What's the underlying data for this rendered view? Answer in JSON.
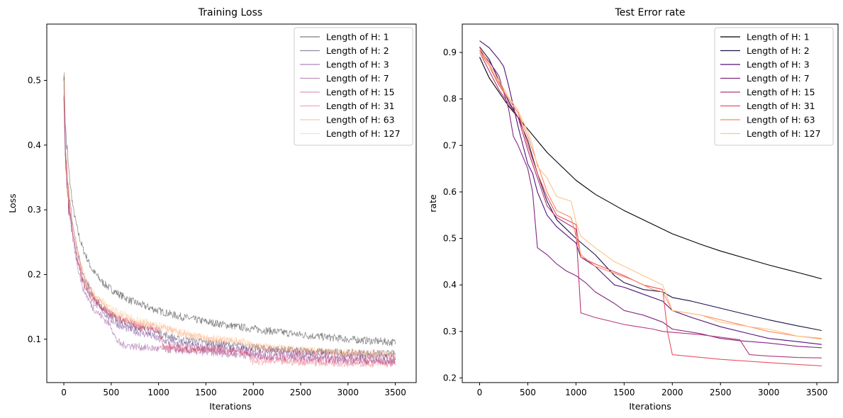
{
  "chart_data": [
    {
      "type": "line",
      "title": "Training Loss",
      "xlabel": "Iterations",
      "ylabel": "Loss",
      "xlim": [
        -180,
        3720
      ],
      "ylim": [
        0.033,
        0.587
      ],
      "xticks": [
        0,
        500,
        1000,
        1500,
        2000,
        2500,
        3000,
        3500
      ],
      "yticks": [
        0.1,
        0.2,
        0.3,
        0.4,
        0.5
      ],
      "grid": false,
      "legend": "top-right",
      "noisy": true,
      "line_opacity": 0.5,
      "series": [
        {
          "name": "Length of H: 1",
          "color": "#000004",
          "x": [
            0,
            20,
            50,
            100,
            150,
            200,
            300,
            400,
            500,
            600,
            700,
            800,
            1000,
            1200,
            1500,
            1800,
            2000,
            2500,
            3000,
            3500
          ],
          "values": [
            0.52,
            0.42,
            0.36,
            0.3,
            0.265,
            0.24,
            0.207,
            0.189,
            0.177,
            0.168,
            0.16,
            0.154,
            0.144,
            0.136,
            0.127,
            0.12,
            0.116,
            0.107,
            0.1,
            0.095
          ]
        },
        {
          "name": "Length of H: 2",
          "color": "#1d1147",
          "x": [
            0,
            20,
            50,
            100,
            150,
            200,
            300,
            400,
            500,
            600,
            700,
            800,
            1000,
            1200,
            1500,
            2000,
            2500,
            3000,
            3500
          ],
          "values": [
            0.5,
            0.4,
            0.33,
            0.27,
            0.23,
            0.2,
            0.17,
            0.15,
            0.137,
            0.128,
            0.122,
            0.117,
            0.11,
            0.1,
            0.095,
            0.087,
            0.082,
            0.079,
            0.077
          ]
        },
        {
          "name": "Length of H: 3",
          "color": "#51127c",
          "x": [
            0,
            20,
            50,
            100,
            150,
            200,
            300,
            400,
            500,
            600,
            700,
            800,
            900,
            1000,
            1200,
            1500,
            2000,
            2500,
            3000,
            3500
          ],
          "values": [
            0.48,
            0.38,
            0.31,
            0.26,
            0.22,
            0.19,
            0.16,
            0.145,
            0.13,
            0.12,
            0.115,
            0.11,
            0.107,
            0.1,
            0.092,
            0.088,
            0.082,
            0.078,
            0.075,
            0.072
          ]
        },
        {
          "name": "Length of H: 7",
          "color": "#832681",
          "x": [
            0,
            20,
            50,
            100,
            150,
            200,
            300,
            400,
            500,
            550,
            600,
            700,
            800,
            1000,
            1500,
            2000,
            2500,
            3000,
            3500
          ],
          "values": [
            0.47,
            0.37,
            0.3,
            0.25,
            0.21,
            0.18,
            0.15,
            0.135,
            0.12,
            0.1,
            0.092,
            0.09,
            0.088,
            0.085,
            0.08,
            0.075,
            0.07,
            0.067,
            0.065
          ]
        },
        {
          "name": "Length of H: 15",
          "color": "#b73779",
          "x": [
            0,
            20,
            50,
            100,
            150,
            200,
            300,
            400,
            500,
            600,
            700,
            800,
            1000,
            1050,
            1200,
            1500,
            1900,
            2000,
            2500,
            2800,
            3000,
            3500
          ],
          "values": [
            0.49,
            0.38,
            0.31,
            0.26,
            0.22,
            0.19,
            0.165,
            0.15,
            0.138,
            0.13,
            0.125,
            0.12,
            0.115,
            0.088,
            0.085,
            0.083,
            0.08,
            0.075,
            0.072,
            0.07,
            0.068,
            0.066
          ]
        },
        {
          "name": "Length of H: 31",
          "color": "#e75263",
          "x": [
            0,
            20,
            50,
            100,
            150,
            200,
            300,
            400,
            500,
            600,
            700,
            800,
            1000,
            1050,
            1500,
            1900,
            2000,
            2500,
            3000,
            3500
          ],
          "values": [
            0.49,
            0.38,
            0.31,
            0.26,
            0.22,
            0.19,
            0.165,
            0.15,
            0.138,
            0.13,
            0.125,
            0.12,
            0.114,
            0.088,
            0.085,
            0.082,
            0.066,
            0.065,
            0.063,
            0.062
          ]
        },
        {
          "name": "Length of H: 63",
          "color": "#fc8961",
          "x": [
            0,
            20,
            50,
            100,
            150,
            200,
            300,
            400,
            500,
            600,
            700,
            800,
            1000,
            1200,
            1500,
            1900,
            2000,
            2500,
            3000,
            3500
          ],
          "values": [
            0.5,
            0.39,
            0.32,
            0.27,
            0.23,
            0.2,
            0.17,
            0.155,
            0.143,
            0.135,
            0.13,
            0.125,
            0.12,
            0.11,
            0.1,
            0.095,
            0.088,
            0.082,
            0.078,
            0.075
          ]
        },
        {
          "name": "Length of H: 127",
          "color": "#fec488",
          "x": [
            0,
            20,
            50,
            100,
            150,
            200,
            300,
            400,
            500,
            600,
            700,
            800,
            1000,
            1200,
            1500,
            1900,
            2000,
            2500,
            3000,
            3500
          ],
          "values": [
            0.52,
            0.4,
            0.33,
            0.275,
            0.235,
            0.205,
            0.175,
            0.16,
            0.148,
            0.14,
            0.134,
            0.128,
            0.122,
            0.112,
            0.102,
            0.096,
            0.09,
            0.084,
            0.08,
            0.077
          ]
        }
      ]
    },
    {
      "type": "line",
      "title": "Test Error rate",
      "xlabel": "Iterations",
      "ylabel": "rate",
      "xlim": [
        -180,
        3720
      ],
      "ylim": [
        0.19,
        0.961
      ],
      "xticks": [
        0,
        500,
        1000,
        1500,
        2000,
        2500,
        3000,
        3500
      ],
      "yticks": [
        0.2,
        0.3,
        0.4,
        0.5,
        0.6,
        0.7,
        0.8,
        0.9
      ],
      "grid": false,
      "legend": "top-right",
      "noisy": false,
      "line_opacity": 1,
      "series": [
        {
          "name": "Length of H: 1",
          "color": "#000004",
          "x": [
            0,
            100,
            200,
            300,
            400,
            500,
            700,
            1000,
            1200,
            1500,
            1800,
            2000,
            2300,
            2500,
            2800,
            3000,
            3300,
            3550
          ],
          "values": [
            0.89,
            0.845,
            0.815,
            0.785,
            0.76,
            0.735,
            0.685,
            0.625,
            0.595,
            0.56,
            0.53,
            0.51,
            0.487,
            0.473,
            0.455,
            0.443,
            0.427,
            0.413
          ]
        },
        {
          "name": "Length of H: 2",
          "color": "#1d1147",
          "x": [
            0,
            100,
            200,
            300,
            400,
            500,
            600,
            700,
            800,
            1000,
            1200,
            1400,
            1500,
            1700,
            1900,
            2000,
            2200,
            2500,
            2700,
            3000,
            3300,
            3550
          ],
          "values": [
            0.912,
            0.885,
            0.84,
            0.795,
            0.76,
            0.71,
            0.64,
            0.58,
            0.54,
            0.5,
            0.465,
            0.42,
            0.405,
            0.39,
            0.385,
            0.373,
            0.365,
            0.35,
            0.34,
            0.325,
            0.312,
            0.302
          ]
        },
        {
          "name": "Length of H: 3",
          "color": "#51127c",
          "x": [
            0,
            100,
            200,
            250,
            300,
            400,
            500,
            550,
            600,
            700,
            800,
            1000,
            1050,
            1200,
            1300,
            1400,
            1500,
            1700,
            1900,
            2000,
            2200,
            2500,
            2800,
            3000,
            3300,
            3550
          ],
          "values": [
            0.925,
            0.91,
            0.885,
            0.87,
            0.83,
            0.74,
            0.66,
            0.64,
            0.6,
            0.55,
            0.525,
            0.49,
            0.46,
            0.44,
            0.42,
            0.4,
            0.395,
            0.38,
            0.365,
            0.345,
            0.33,
            0.31,
            0.295,
            0.285,
            0.278,
            0.272
          ]
        },
        {
          "name": "Length of H: 7",
          "color": "#832681",
          "x": [
            0,
            100,
            200,
            300,
            350,
            400,
            500,
            550,
            600,
            700,
            800,
            900,
            1000,
            1100,
            1200,
            1400,
            1500,
            1700,
            1900,
            2000,
            2300,
            2500,
            2700,
            3000,
            3300,
            3550
          ],
          "values": [
            0.905,
            0.88,
            0.85,
            0.78,
            0.72,
            0.7,
            0.65,
            0.6,
            0.48,
            0.465,
            0.445,
            0.43,
            0.42,
            0.405,
            0.385,
            0.36,
            0.345,
            0.335,
            0.32,
            0.305,
            0.295,
            0.285,
            0.28,
            0.275,
            0.268,
            0.265
          ]
        },
        {
          "name": "Length of H: 15",
          "color": "#b73779",
          "x": [
            0,
            100,
            200,
            300,
            400,
            500,
            600,
            700,
            800,
            1000,
            1050,
            1200,
            1500,
            1800,
            1900,
            2000,
            2300,
            2600,
            2700,
            2800,
            3000,
            3300,
            3550
          ],
          "values": [
            0.9,
            0.86,
            0.82,
            0.79,
            0.76,
            0.69,
            0.63,
            0.57,
            0.545,
            0.52,
            0.34,
            0.33,
            0.315,
            0.305,
            0.3,
            0.298,
            0.293,
            0.285,
            0.282,
            0.25,
            0.247,
            0.244,
            0.243
          ]
        },
        {
          "name": "Length of H: 31",
          "color": "#e75263",
          "x": [
            0,
            100,
            200,
            300,
            400,
            500,
            600,
            700,
            800,
            1000,
            1050,
            1200,
            1500,
            1700,
            1900,
            1950,
            2000,
            2500,
            3000,
            3300,
            3550
          ],
          "values": [
            0.905,
            0.87,
            0.83,
            0.8,
            0.77,
            0.7,
            0.64,
            0.59,
            0.55,
            0.53,
            0.46,
            0.445,
            0.42,
            0.4,
            0.39,
            0.3,
            0.25,
            0.24,
            0.233,
            0.229,
            0.226
          ]
        },
        {
          "name": "Length of H: 63",
          "color": "#fc8961",
          "x": [
            0,
            100,
            200,
            300,
            400,
            500,
            600,
            700,
            800,
            950,
            1050,
            1200,
            1400,
            1600,
            1800,
            1900,
            2000,
            2300,
            2500,
            2800,
            3000,
            3300,
            3550
          ],
          "values": [
            0.91,
            0.875,
            0.835,
            0.8,
            0.77,
            0.72,
            0.66,
            0.6,
            0.56,
            0.545,
            0.465,
            0.44,
            0.425,
            0.41,
            0.39,
            0.385,
            0.345,
            0.335,
            0.325,
            0.31,
            0.3,
            0.29,
            0.285
          ]
        },
        {
          "name": "Length of H: 127",
          "color": "#fec488",
          "x": [
            0,
            100,
            200,
            300,
            400,
            500,
            550,
            600,
            700,
            800,
            950,
            1000,
            1050,
            1200,
            1400,
            1600,
            1800,
            1900,
            2000,
            2300,
            2500,
            2800,
            3000,
            3300,
            3550
          ],
          "values": [
            0.9,
            0.87,
            0.84,
            0.805,
            0.775,
            0.73,
            0.7,
            0.655,
            0.63,
            0.59,
            0.58,
            0.535,
            0.505,
            0.48,
            0.45,
            0.43,
            0.41,
            0.4,
            0.345,
            0.335,
            0.32,
            0.31,
            0.305,
            0.29,
            0.283
          ]
        }
      ]
    }
  ]
}
